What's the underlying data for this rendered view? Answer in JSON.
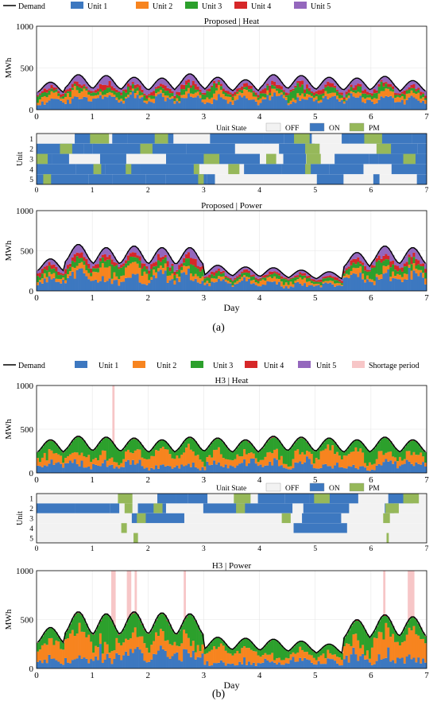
{
  "colors": {
    "demand": "#000000",
    "unit1": "#3d78c0",
    "unit2": "#f7841f",
    "unit3": "#2ca02c",
    "unit4": "#d62728",
    "unit5": "#9467bd",
    "shortage": "#f7c6c7",
    "state_off": "#f2f2f2",
    "state_on": "#3d78c0",
    "state_pm": "#96b85a"
  },
  "panel_a": {
    "label": "(a)",
    "legend": [
      "Demand",
      "Unit 1",
      "Unit 2",
      "Unit 3",
      "Unit 4",
      "Unit 5"
    ],
    "state_legend": {
      "title": "Unit State",
      "items": [
        "OFF",
        "ON",
        "PM"
      ]
    }
  },
  "panel_b": {
    "label": "(b)",
    "legend": [
      "Demand",
      "Unit 1",
      "Unit 2",
      "Unit 3",
      "Unit 4",
      "Unit 5",
      "Shortage period"
    ],
    "state_legend": {
      "title": "Unit State",
      "items": [
        "OFF",
        "ON",
        "PM"
      ]
    }
  },
  "chart_data": [
    {
      "type": "area",
      "panel": "a",
      "stacked": true,
      "title": "Proposed | Heat",
      "xlabel": "",
      "ylabel": "MWh",
      "xlim": [
        0,
        7
      ],
      "ylim": [
        0,
        1000
      ],
      "xticks": [
        0,
        1,
        2,
        3,
        4,
        5,
        6,
        7
      ],
      "yticks": [
        0,
        500,
        1000
      ],
      "grid": true,
      "x": [
        0,
        0.5,
        1,
        1.5,
        2,
        2.5,
        3,
        3.5,
        4,
        4.5,
        5,
        5.5,
        6,
        6.5,
        7
      ],
      "demand_peaks": [
        330,
        420,
        410,
        390,
        380,
        430,
        390,
        360,
        420,
        410,
        390,
        380,
        400,
        350
      ],
      "demand_profile": "daily cycle, min about 220, max about 430 MWh",
      "series": [
        {
          "name": "Unit 1",
          "share": 0.42
        },
        {
          "name": "Unit 2",
          "share": 0.12
        },
        {
          "name": "Unit 3",
          "share": 0.14
        },
        {
          "name": "Unit 4",
          "share": 0.12
        },
        {
          "name": "Unit 5",
          "share": 0.2
        }
      ]
    },
    {
      "type": "heatmap",
      "panel": "a",
      "title": "Unit State",
      "ylabel": "Unit",
      "xlim": [
        0,
        7
      ],
      "xticks": [
        0,
        1,
        2,
        3,
        4,
        5,
        6,
        7
      ],
      "units": [
        1,
        2,
        3,
        4,
        5
      ],
      "categories": [
        "OFF",
        "ON",
        "PM"
      ],
      "pm_intervals": {
        "1": [
          [
            0.96,
            1.3
          ],
          [
            2.12,
            2.36
          ],
          [
            4.62,
            4.9
          ],
          [
            5.88,
            6.2
          ]
        ],
        "2": [
          [
            0.42,
            0.64
          ],
          [
            1.86,
            2.08
          ],
          [
            4.82,
            5.08
          ],
          [
            6.1,
            6.36
          ]
        ],
        "3": [
          [
            0.0,
            0.2
          ],
          [
            3.0,
            3.28
          ],
          [
            4.12,
            4.3
          ],
          [
            4.84,
            5.1
          ],
          [
            6.58,
            6.8
          ]
        ],
        "4": [
          [
            1.02,
            1.16
          ],
          [
            1.6,
            1.7
          ],
          [
            2.82,
            2.92
          ],
          [
            3.44,
            3.64
          ],
          [
            4.82,
            4.92
          ]
        ],
        "5": [
          [
            0.12,
            0.26
          ],
          [
            2.9,
            3.0
          ]
        ]
      }
    },
    {
      "type": "area",
      "panel": "a",
      "stacked": true,
      "title": "Proposed | Power",
      "xlabel": "Day",
      "ylabel": "MWh",
      "xlim": [
        0,
        7
      ],
      "ylim": [
        0,
        1000
      ],
      "xticks": [
        0,
        1,
        2,
        3,
        4,
        5,
        6,
        7
      ],
      "yticks": [
        0,
        500,
        1000
      ],
      "grid": true,
      "x": [
        0,
        0.5,
        1,
        1.5,
        2,
        2.5,
        3,
        3.5,
        4,
        4.5,
        5,
        5.5,
        6,
        6.5,
        7
      ],
      "demand_peaks": [
        400,
        580,
        540,
        560,
        540,
        540,
        320,
        300,
        290,
        260,
        240,
        480,
        560,
        540
      ],
      "demand_profile": "daily cycle, min about 200, max about 580 MWh",
      "series": [
        {
          "name": "Unit 1",
          "share": 0.4
        },
        {
          "name": "Unit 2",
          "share": 0.14
        },
        {
          "name": "Unit 3",
          "share": 0.16
        },
        {
          "name": "Unit 4",
          "share": 0.12
        },
        {
          "name": "Unit 5",
          "share": 0.18
        }
      ]
    },
    {
      "type": "area",
      "panel": "b",
      "stacked": true,
      "title": "H3 | Heat",
      "xlabel": "",
      "ylabel": "MWh",
      "xlim": [
        0,
        7
      ],
      "ylim": [
        0,
        1000
      ],
      "xticks": [
        0,
        1,
        2,
        3,
        4,
        5,
        6,
        7
      ],
      "yticks": [
        0,
        500,
        1000
      ],
      "grid": true,
      "x": [
        0,
        0.5,
        1,
        1.5,
        2,
        2.5,
        3,
        3.5,
        4,
        4.5,
        5,
        5.5,
        6,
        6.5,
        7
      ],
      "demand_peaks": [
        380,
        420,
        410,
        400,
        380,
        410,
        400,
        380,
        420,
        410,
        400,
        380,
        410,
        380
      ],
      "demand_profile": "daily cycle, min about 230, max about 430 MWh",
      "shortage_periods": [
        [
          1.36,
          1.4
        ]
      ],
      "series": [
        {
          "name": "Unit 1",
          "share": 0.3
        },
        {
          "name": "Unit 2",
          "share": 0.3
        },
        {
          "name": "Unit 3",
          "share": 0.38
        },
        {
          "name": "Unit 4",
          "share": 0.01
        },
        {
          "name": "Unit 5",
          "share": 0.01
        }
      ]
    },
    {
      "type": "heatmap",
      "panel": "b",
      "title": "Unit State",
      "ylabel": "Unit",
      "xlim": [
        0,
        7
      ],
      "xticks": [
        0,
        1,
        2,
        3,
        4,
        5,
        6,
        7
      ],
      "units": [
        1,
        2,
        3,
        4,
        5
      ],
      "categories": [
        "OFF",
        "ON",
        "PM"
      ],
      "pm_intervals": {
        "1": [
          [
            1.46,
            1.72
          ],
          [
            3.54,
            3.84
          ],
          [
            4.98,
            5.26
          ],
          [
            6.58,
            6.86
          ]
        ],
        "2": [
          [
            1.58,
            1.72
          ],
          [
            2.1,
            2.26
          ],
          [
            3.58,
            3.74
          ],
          [
            6.26,
            6.5
          ]
        ],
        "3": [
          [
            1.8,
            1.96
          ],
          [
            4.4,
            4.56
          ],
          [
            6.22,
            6.34
          ]
        ],
        "4": [
          [
            1.52,
            1.62
          ]
        ],
        "5": [
          [
            1.74,
            1.82
          ],
          [
            6.28,
            6.32
          ]
        ]
      }
    },
    {
      "type": "area",
      "panel": "b",
      "stacked": true,
      "title": "H3 | Power",
      "xlabel": "Day",
      "ylabel": "MWh",
      "xlim": [
        0,
        7
      ],
      "ylim": [
        0,
        1000
      ],
      "xticks": [
        0,
        1,
        2,
        3,
        4,
        5,
        6,
        7
      ],
      "yticks": [
        0,
        500,
        1000
      ],
      "grid": true,
      "x": [
        0,
        0.5,
        1,
        1.5,
        2,
        2.5,
        3,
        3.5,
        4,
        4.5,
        5,
        5.5,
        6,
        6.5,
        7
      ],
      "demand_peaks": [
        420,
        580,
        560,
        580,
        570,
        560,
        320,
        310,
        300,
        280,
        250,
        500,
        550,
        530
      ],
      "demand_profile": "daily cycle, min about 210, max about 590 MWh",
      "shortage_periods": [
        [
          1.34,
          1.42
        ],
        [
          1.62,
          1.7
        ],
        [
          1.76,
          1.8
        ],
        [
          2.64,
          2.68
        ],
        [
          6.22,
          6.26
        ],
        [
          6.66,
          6.78
        ]
      ],
      "series": [
        {
          "name": "Unit 1",
          "share": 0.3
        },
        {
          "name": "Unit 2",
          "share": 0.32
        },
        {
          "name": "Unit 3",
          "share": 0.36
        },
        {
          "name": "Unit 4",
          "share": 0.01
        },
        {
          "name": "Unit 5",
          "share": 0.01
        }
      ]
    }
  ]
}
